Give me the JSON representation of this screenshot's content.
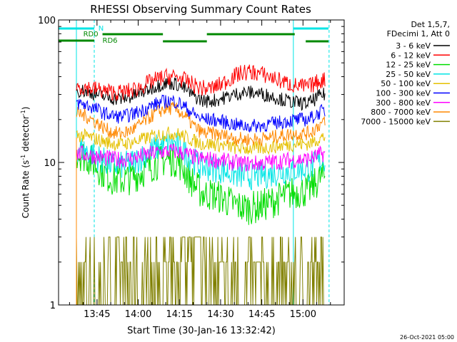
{
  "chart_data": {
    "type": "line",
    "title": "RHESSI Observing Summary Count Rates",
    "xlabel": "Start Time (30-Jan-16 13:32:42)",
    "ylabel_main": "Count Rate (s",
    "ylabel_sup1": "-1",
    "ylabel_mid": " detector",
    "ylabel_sup2": "-1",
    "ylabel_end": ")",
    "yscale": "log",
    "xlim_minutes": [
      -14,
      90
    ],
    "ylim": [
      1,
      100
    ],
    "x_ticks": [
      {
        "minute": 0,
        "label": "13:45"
      },
      {
        "minute": 15,
        "label": "14:00"
      },
      {
        "minute": 30,
        "label": "14:15"
      },
      {
        "minute": 45,
        "label": "14:30"
      },
      {
        "minute": 60,
        "label": "14:45"
      },
      {
        "minute": 75,
        "label": "15:00"
      }
    ],
    "y_ticks": [
      {
        "value": 100,
        "label": "100"
      },
      {
        "value": 10,
        "label": "10"
      },
      {
        "value": 1,
        "label": "1"
      }
    ],
    "legend_header": [
      "Det 1,5,7,",
      "FDecimi 1, Att 0"
    ],
    "legend_placement": "right",
    "series": [
      {
        "name": "3 - 6 keV",
        "color": "#000000",
        "level": [
          32,
          28,
          36,
          27,
          31,
          26,
          30
        ],
        "noise": 0.05
      },
      {
        "name": "6 - 12 keV",
        "color": "#ff0000",
        "level": [
          34,
          31,
          40,
          33,
          43,
          34,
          38
        ],
        "noise": 0.06
      },
      {
        "name": "12 - 25 keV",
        "color": "#00dd00",
        "level": [
          11.5,
          7.5,
          10.5,
          6.0,
          4.8,
          6.3,
          8.0
        ],
        "noise": 0.12
      },
      {
        "name": "25 - 50 keV",
        "color": "#00e5e5",
        "level": [
          12.5,
          9.5,
          13.5,
          9.2,
          8.0,
          9.0,
          10.5
        ],
        "noise": 0.1
      },
      {
        "name": "50 - 100 keV",
        "color": "#e5c000",
        "level": [
          15.5,
          13.5,
          16.0,
          13.5,
          12.5,
          13.5,
          15.0
        ],
        "noise": 0.05
      },
      {
        "name": "100 - 300 keV",
        "color": "#0000ff",
        "level": [
          26,
          21,
          27,
          20,
          18,
          20,
          23
        ],
        "noise": 0.05
      },
      {
        "name": "300 - 800 keV",
        "color": "#ff00ff",
        "level": [
          11.5,
          10.5,
          12.0,
          10.5,
          9.8,
          10.5,
          11.5
        ],
        "noise": 0.06
      },
      {
        "name": "800 - 7000 keV",
        "color": "#ff8800",
        "level": [
          22,
          16,
          24,
          16,
          14.5,
          16,
          19
        ],
        "noise": 0.05
      },
      {
        "name": "7000 - 15000 keV",
        "color": "#808000",
        "level": [
          1.6,
          1.4,
          2.0,
          1.5,
          1.3,
          1.3,
          1.4
        ],
        "noise": 0.35
      }
    ],
    "segment_minutes": [
      [
        -12,
        -12
      ],
      [
        -12,
        84
      ]
    ],
    "annotations": {
      "N_label": "N",
      "RD0_label": "RD0",
      "RD6_label": "RD6"
    },
    "timestamp": "26-Oct-2021 05:00"
  }
}
